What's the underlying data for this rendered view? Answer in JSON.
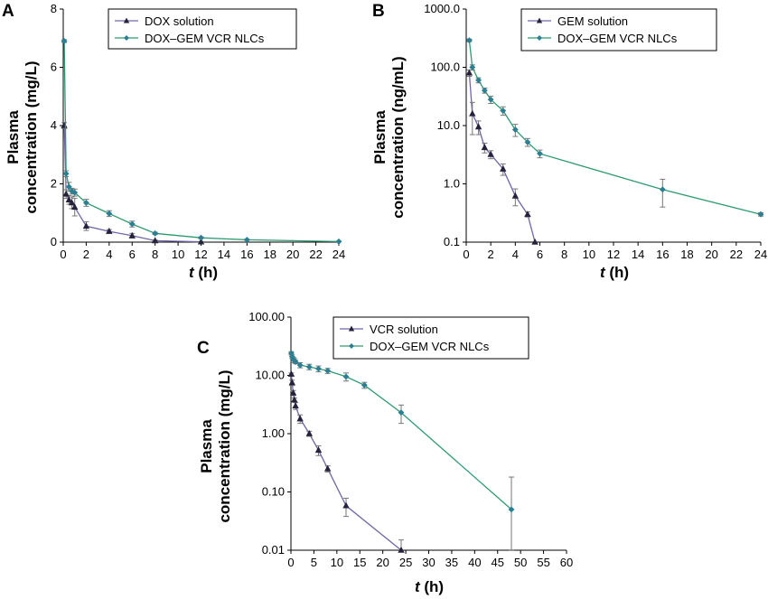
{
  "colors": {
    "solution": "#6e67a7",
    "solution_marker": "#26223c",
    "nlc": "#2e9a70",
    "nlc_marker": "#2c7f92",
    "error": "#777777"
  },
  "chart_data": [
    {
      "panel": "A",
      "type": "line",
      "ylabel_line1": "Plasma",
      "ylabel_line2": "concentration (mg/L)",
      "xlabel_italic": "t",
      "xlabel_unit": "(h)",
      "xlim": [
        0,
        24
      ],
      "ylim": [
        0,
        8
      ],
      "yscale": "linear",
      "xticks": [
        0,
        2,
        4,
        6,
        8,
        10,
        12,
        14,
        16,
        18,
        20,
        22,
        24
      ],
      "yticks": [
        0,
        2,
        4,
        6,
        8
      ],
      "ytick_labels": [
        "0",
        "2",
        "4",
        "6",
        "8"
      ],
      "legend_position": "top-right",
      "series": [
        {
          "name": "DOX solution",
          "marker": "triangle",
          "x": [
            0.083,
            0.25,
            0.5,
            0.75,
            1,
            2,
            4,
            6,
            8,
            12
          ],
          "y": [
            4.0,
            1.65,
            1.45,
            1.35,
            1.2,
            0.55,
            0.37,
            0.22,
            0.05,
            0.01
          ],
          "err": [
            0.1,
            0.15,
            0.15,
            0.2,
            0.3,
            0.15,
            0.06,
            0.08,
            0.02,
            0.01
          ]
        },
        {
          "name": "DOX–GEM VCR NLCs",
          "marker": "diamond",
          "x": [
            0.083,
            0.25,
            0.5,
            0.75,
            1,
            2,
            4,
            6,
            8,
            12,
            16,
            24
          ],
          "y": [
            6.9,
            2.35,
            1.9,
            1.75,
            1.7,
            1.35,
            0.98,
            0.62,
            0.3,
            0.15,
            0.08,
            0.02
          ],
          "err": [
            0.05,
            0.1,
            0.15,
            0.1,
            0.12,
            0.12,
            0.1,
            0.1,
            0.04,
            0.03,
            0.02,
            0.01
          ]
        }
      ]
    },
    {
      "panel": "B",
      "type": "line",
      "ylabel_line1": "Plasma",
      "ylabel_line2": "concentration (ng/mL)",
      "xlabel_italic": "t",
      "xlabel_unit": "(h)",
      "xlim": [
        0,
        24
      ],
      "ylim": [
        0.1,
        1000
      ],
      "yscale": "log",
      "xticks": [
        0,
        2,
        4,
        6,
        8,
        10,
        12,
        14,
        16,
        18,
        20,
        22,
        24
      ],
      "yticks": [
        0.1,
        1,
        10,
        100,
        1000
      ],
      "ytick_labels": [
        "0.1",
        "1.0",
        "10.0",
        "100.0",
        "1000.0"
      ],
      "legend_position": "top-right",
      "series": [
        {
          "name": "GEM solution",
          "marker": "triangle",
          "x": [
            0.25,
            0.5,
            1,
            1.5,
            2,
            3,
            4,
            5,
            5.6
          ],
          "y": [
            80,
            16,
            9.5,
            4.2,
            3.2,
            1.8,
            0.62,
            0.3,
            0.1
          ],
          "err": [
            10,
            9,
            2.5,
            0.8,
            0.5,
            0.4,
            0.2,
            0.03,
            0
          ]
        },
        {
          "name": "DOX–GEM VCR NLCs",
          "marker": "diamond",
          "x": [
            0.25,
            0.5,
            1,
            1.5,
            2,
            3,
            4,
            5,
            6,
            16,
            24
          ],
          "y": [
            290,
            100,
            60,
            40,
            28,
            18,
            8.5,
            5.2,
            3.3,
            0.8,
            0.3
          ],
          "err": [
            15,
            10,
            6,
            4,
            4,
            3,
            2,
            0.8,
            0.5,
            0.4,
            0.02
          ]
        }
      ]
    },
    {
      "panel": "C",
      "type": "line",
      "ylabel_line1": "Plasma",
      "ylabel_line2": "concentration (mg/L)",
      "xlabel_italic": "t",
      "xlabel_unit": "(h)",
      "xlim": [
        0,
        60
      ],
      "ylim": [
        0.01,
        100
      ],
      "yscale": "log",
      "xticks": [
        0,
        5,
        10,
        15,
        20,
        25,
        30,
        35,
        40,
        45,
        50,
        55,
        60
      ],
      "yticks": [
        0.01,
        0.1,
        1,
        10,
        100
      ],
      "ytick_labels": [
        "0.01",
        "0.10",
        "1.00",
        "10.00",
        "100.00"
      ],
      "legend_position": "top-right",
      "series": [
        {
          "name": "VCR solution",
          "marker": "triangle",
          "x": [
            0.083,
            0.25,
            0.5,
            0.75,
            1,
            2,
            4,
            6,
            8,
            12,
            24
          ],
          "y": [
            10.5,
            7.5,
            5.0,
            3.8,
            3.0,
            1.8,
            1.0,
            0.52,
            0.25,
            0.058,
            0.01
          ],
          "err": [
            0.5,
            0.8,
            0.5,
            0.3,
            0.4,
            0.3,
            0.1,
            0.1,
            0.03,
            0.02,
            0.005
          ]
        },
        {
          "name": "DOX–GEM VCR NLCs",
          "marker": "diamond",
          "x": [
            0.083,
            0.25,
            0.5,
            0.75,
            1,
            2,
            4,
            6,
            8,
            12,
            16,
            24,
            48
          ],
          "y": [
            24,
            21,
            19,
            18,
            17,
            15,
            14,
            13,
            12,
            9.5,
            6.8,
            2.3,
            0.05
          ],
          "err": [
            1.5,
            1.5,
            1.5,
            1.5,
            1.2,
            1.5,
            1.5,
            1.5,
            1.2,
            1.5,
            0.8,
            0.8,
            0.13
          ]
        }
      ]
    }
  ]
}
